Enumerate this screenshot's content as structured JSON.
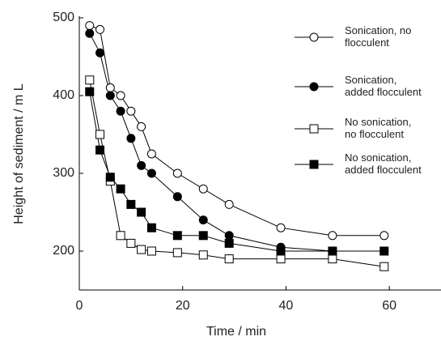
{
  "chart_data": {
    "type": "line",
    "x_label": "Time / min",
    "y_label": "Height of sediment / m L",
    "x": [
      2,
      4,
      6,
      8,
      10,
      12,
      14,
      19,
      24,
      29,
      39,
      49,
      59
    ],
    "xlim": [
      0,
      70
    ],
    "xticks": [
      0,
      20,
      40,
      60
    ],
    "ylim": [
      150,
      500
    ],
    "yticks": [
      200,
      300,
      400,
      500
    ],
    "series": [
      {
        "name": "Sonication, no flocculent",
        "color": "#000000",
        "marker": "circle",
        "filled": false,
        "values": [
          490,
          485,
          410,
          400,
          380,
          360,
          325,
          300,
          280,
          260,
          230,
          220,
          220
        ]
      },
      {
        "name": "Sonication, added flocculent",
        "color": "#000000",
        "marker": "circle",
        "filled": true,
        "values": [
          480,
          455,
          400,
          380,
          345,
          310,
          300,
          270,
          240,
          220,
          205,
          200,
          200
        ]
      },
      {
        "name": "No sonication, no flocculent",
        "color": "#000000",
        "marker": "square",
        "filled": false,
        "values": [
          420,
          350,
          290,
          220,
          210,
          202,
          200,
          198,
          195,
          190,
          190,
          190,
          180
        ]
      },
      {
        "name": "No sonication, added flocculent",
        "color": "#000000",
        "marker": "square",
        "filled": true,
        "values": [
          405,
          330,
          295,
          280,
          260,
          250,
          230,
          220,
          220,
          210,
          200,
          200,
          200
        ]
      }
    ]
  }
}
